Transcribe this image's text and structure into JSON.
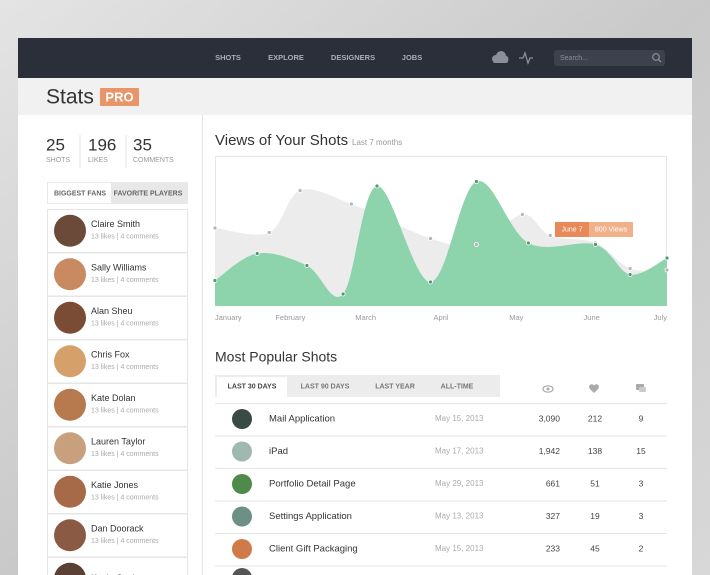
{
  "nav": {
    "items": [
      "SHOTS",
      "EXPLORE",
      "DESIGNERS",
      "JOBS"
    ],
    "search_placeholder": "Search..."
  },
  "header": {
    "title": "Stats",
    "badge": "PRO"
  },
  "sidebar": {
    "stats": [
      {
        "value": 25,
        "label": "SHOTS"
      },
      {
        "value": 196,
        "label": "LIKES"
      },
      {
        "value": 35,
        "label": "COMMENTS"
      }
    ],
    "tabs": [
      "BIGGEST FANS",
      "FAVORITE PLAYERS"
    ],
    "fans": [
      {
        "name": "Claire Smith",
        "detail": "13 likes | 4 comments"
      },
      {
        "name": "Sally Williams",
        "detail": "13 likes | 4 comments"
      },
      {
        "name": "Alan Sheu",
        "detail": "13 likes | 4 comments"
      },
      {
        "name": "Chris Fox",
        "detail": "13 likes | 4 comments"
      },
      {
        "name": "Kate Dolan",
        "detail": "13 likes | 4 comments"
      },
      {
        "name": "Lauren Taylor",
        "detail": "13 likes | 4 comments"
      },
      {
        "name": "Katie Jones",
        "detail": "13 likes | 4 comments"
      },
      {
        "name": "Dan Doorack",
        "detail": "13 likes | 4 comments"
      },
      {
        "name": "Kevin Conlan"
      }
    ]
  },
  "chart_data": {
    "type": "area",
    "title": "Views of Your Shots",
    "subtitle": "Last 7 months",
    "xlim": [
      0,
      6
    ],
    "ylim": [
      0,
      100
    ],
    "xticks": [
      {
        "value": 0,
        "label": "January"
      },
      {
        "value": 1,
        "label": "February"
      },
      {
        "value": 2,
        "label": "March"
      },
      {
        "value": 3,
        "label": "April"
      },
      {
        "value": 4,
        "label": "May"
      },
      {
        "value": 5,
        "label": "June"
      },
      {
        "value": 6,
        "label": "July"
      }
    ],
    "series": [
      {
        "color": "#ececec",
        "x": [
          0,
          0.72,
          1.13,
          1.81,
          2.86,
          3.47,
          4.08,
          4.45,
          5.05,
          5.51,
          6
        ],
        "values": [
          52,
          49,
          77,
          68,
          45,
          41,
          61,
          47,
          42,
          25,
          24
        ]
      },
      {
        "color": "#8dd3ab",
        "x": [
          0,
          0.56,
          1.22,
          1.7,
          2.15,
          2.86,
          3.47,
          4.16,
          5.05,
          5.51,
          6
        ],
        "values": [
          17,
          35,
          27,
          8,
          80,
          16,
          83,
          42,
          41,
          21,
          32
        ]
      }
    ],
    "annotation": {
      "date": "June 7",
      "text": "800 Views"
    }
  },
  "table": {
    "title": "Most Popular Shots",
    "tabs": [
      "LAST 30 DAYS",
      "LAST 90 DAYS",
      "LAST YEAR",
      "ALL-TIME"
    ],
    "rows": [
      [
        "Mail Application",
        "May 15, 2013",
        "3,090",
        "212",
        "9"
      ],
      [
        "iPad",
        "May 17, 2013",
        "1,942",
        "138",
        "15"
      ],
      [
        "Portfolio Detail Page",
        "May 29, 2013",
        "661",
        "51",
        "3"
      ],
      [
        "Settings Application",
        "May 13, 2013",
        "327",
        "19",
        "3"
      ],
      [
        "Client Gift Packaging",
        "May 15, 2013",
        "233",
        "45",
        "2"
      ]
    ]
  }
}
